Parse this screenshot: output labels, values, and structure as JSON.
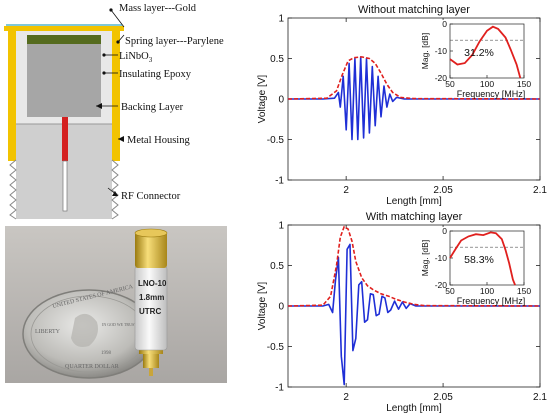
{
  "diagram": {
    "labels": {
      "mass": "Mass layer---Gold",
      "spring": "Spring layer---Parylene",
      "linbo3": "LiNbO",
      "linbo3_sub": "3",
      "epoxy": "Insulating Epoxy",
      "backing": "Backing Layer",
      "housing": "Metal Housing",
      "rf": "RF Connector"
    },
    "colors": {
      "gold": "#f2c300",
      "spring": "#7fc8d8",
      "linbo3": "#556b1e",
      "backing": "#a6a6a6",
      "epoxy": "#e8e8e8",
      "connector": "#cfcfcf",
      "pin": "#d42020"
    }
  },
  "photo": {
    "device_text": [
      "LNO-10",
      "1.8mm",
      "UTRC"
    ],
    "coin_text": [
      "UNITED STATES OF AMERICA",
      "LIBERTY",
      "IN GOD WE TRUST",
      "QUARTER DOLLAR",
      "1998"
    ]
  },
  "chart_data": [
    {
      "type": "line",
      "title": "Without matching layer",
      "xlabel": "Length [mm]",
      "ylabel": "Voltage [V]",
      "xlim": [
        1.97,
        2.1
      ],
      "ylim": [
        -1,
        1
      ],
      "xticks": [
        "2",
        "2.05",
        "2.1"
      ],
      "yticks": [
        "1",
        "0.5",
        "0",
        "-0.5",
        "-1"
      ],
      "series": [
        {
          "style": "solid",
          "color": "#1f2fd6",
          "points": [
            [
              1.97,
              0
            ],
            [
              1.988,
              0
            ],
            [
              1.994,
              0.01
            ],
            [
              1.996,
              0.08
            ],
            [
              1.997,
              -0.1
            ],
            [
              1.9985,
              0.28
            ],
            [
              2.0,
              -0.38
            ],
            [
              2.0015,
              0.44
            ],
            [
              2.003,
              -0.5
            ],
            [
              2.0045,
              0.5
            ],
            [
              2.006,
              -0.5
            ],
            [
              2.0075,
              0.52
            ],
            [
              2.009,
              -0.48
            ],
            [
              2.0105,
              0.5
            ],
            [
              2.012,
              -0.42
            ],
            [
              2.0135,
              0.4
            ],
            [
              2.015,
              -0.33
            ],
            [
              2.0165,
              0.28
            ],
            [
              2.018,
              -0.22
            ],
            [
              2.0195,
              0.16
            ],
            [
              2.021,
              -0.1
            ],
            [
              2.0225,
              0.06
            ],
            [
              2.024,
              -0.03
            ],
            [
              2.026,
              0.02
            ],
            [
              2.03,
              0
            ],
            [
              2.1,
              0
            ]
          ]
        },
        {
          "style": "dashed",
          "color": "#e0201e",
          "points": [
            [
              1.97,
              0
            ],
            [
              1.99,
              0.01
            ],
            [
              1.995,
              0.1
            ],
            [
              1.998,
              0.3
            ],
            [
              2.001,
              0.47
            ],
            [
              2.004,
              0.51
            ],
            [
              2.008,
              0.52
            ],
            [
              2.012,
              0.5
            ],
            [
              2.015,
              0.44
            ],
            [
              2.018,
              0.32
            ],
            [
              2.021,
              0.18
            ],
            [
              2.024,
              0.08
            ],
            [
              2.028,
              0.02
            ],
            [
              2.035,
              0.005
            ],
            [
              2.1,
              0
            ]
          ]
        }
      ],
      "inset": {
        "xlabel": "Frequency [MHz]",
        "ylabel": "Mag. [dB]",
        "xlim": [
          50,
          150
        ],
        "ylim": [
          -20,
          0
        ],
        "xticks": [
          "50",
          "100",
          "150"
        ],
        "yticks": [
          "0",
          "-10",
          "-20"
        ],
        "annotation": "31.2%",
        "threshold_db": -6,
        "curve": [
          [
            50,
            -13
          ],
          [
            60,
            -15
          ],
          [
            70,
            -14.5
          ],
          [
            80,
            -11.5
          ],
          [
            90,
            -6.5
          ],
          [
            100,
            -2.5
          ],
          [
            108,
            -1
          ],
          [
            115,
            -1.8
          ],
          [
            125,
            -5
          ],
          [
            132,
            -9.5
          ],
          [
            140,
            -15
          ],
          [
            145,
            -20
          ]
        ]
      }
    },
    {
      "type": "line",
      "title": "With matching layer",
      "xlabel": "Length [mm]",
      "ylabel": "Voltage [V]",
      "xlim": [
        1.97,
        2.1
      ],
      "ylim": [
        -1,
        1
      ],
      "xticks": [
        "2",
        "2.05",
        "2.1"
      ],
      "yticks": [
        "1",
        "0.5",
        "0",
        "-0.5",
        "-1"
      ],
      "series": [
        {
          "style": "solid",
          "color": "#1f2fd6",
          "points": [
            [
              1.97,
              0
            ],
            [
              1.988,
              0
            ],
            [
              1.991,
              0.02
            ],
            [
              1.993,
              -0.08
            ],
            [
              1.9945,
              0.32
            ],
            [
              1.996,
              0.6
            ],
            [
              1.9975,
              -0.62
            ],
            [
              1.999,
              -0.97
            ],
            [
              2.0005,
              0.7
            ],
            [
              2.002,
              0.76
            ],
            [
              2.0035,
              -0.55
            ],
            [
              2.005,
              -0.4
            ],
            [
              2.0065,
              0.26
            ],
            [
              2.008,
              0.3
            ],
            [
              2.0095,
              -0.2
            ],
            [
              2.011,
              -0.17
            ],
            [
              2.0125,
              0.15
            ],
            [
              2.014,
              0.14
            ],
            [
              2.0155,
              -0.12
            ],
            [
              2.017,
              -0.1
            ],
            [
              2.0185,
              0.12
            ],
            [
              2.02,
              0.1
            ],
            [
              2.0215,
              -0.08
            ],
            [
              2.023,
              -0.05
            ],
            [
              2.025,
              0.06
            ],
            [
              2.027,
              -0.04
            ],
            [
              2.029,
              0.05
            ],
            [
              2.031,
              -0.03
            ],
            [
              2.033,
              0.03
            ],
            [
              2.036,
              0
            ],
            [
              2.1,
              0
            ]
          ]
        },
        {
          "style": "dashed",
          "color": "#e0201e",
          "points": [
            [
              1.97,
              0
            ],
            [
              1.988,
              0.01
            ],
            [
              1.992,
              0.12
            ],
            [
              1.995,
              0.5
            ],
            [
              1.997,
              0.85
            ],
            [
              1.999,
              0.98
            ],
            [
              2.001,
              0.95
            ],
            [
              2.003,
              0.8
            ],
            [
              2.005,
              0.55
            ],
            [
              2.008,
              0.35
            ],
            [
              2.011,
              0.25
            ],
            [
              2.014,
              0.2
            ],
            [
              2.018,
              0.15
            ],
            [
              2.022,
              0.12
            ],
            [
              2.026,
              0.08
            ],
            [
              2.03,
              0.05
            ],
            [
              2.035,
              0.02
            ],
            [
              2.04,
              0.005
            ],
            [
              2.1,
              0
            ]
          ]
        }
      ],
      "inset": {
        "xlabel": "Frequency [MHz]",
        "ylabel": "Mag. [dB]",
        "xlim": [
          50,
          150
        ],
        "ylim": [
          -20,
          0
        ],
        "xticks": [
          "50",
          "100",
          "150"
        ],
        "yticks": [
          "0",
          "-10",
          "-20"
        ],
        "annotation": "58.3%",
        "threshold_db": -6,
        "curve": [
          [
            50,
            -10
          ],
          [
            58,
            -6.5
          ],
          [
            65,
            -3.5
          ],
          [
            75,
            -2
          ],
          [
            85,
            -1.2
          ],
          [
            95,
            -1.5
          ],
          [
            105,
            -0.5
          ],
          [
            112,
            -0.8
          ],
          [
            120,
            -3
          ],
          [
            125,
            -7
          ],
          [
            130,
            -12
          ],
          [
            135,
            -18
          ],
          [
            138,
            -20
          ]
        ]
      }
    }
  ]
}
